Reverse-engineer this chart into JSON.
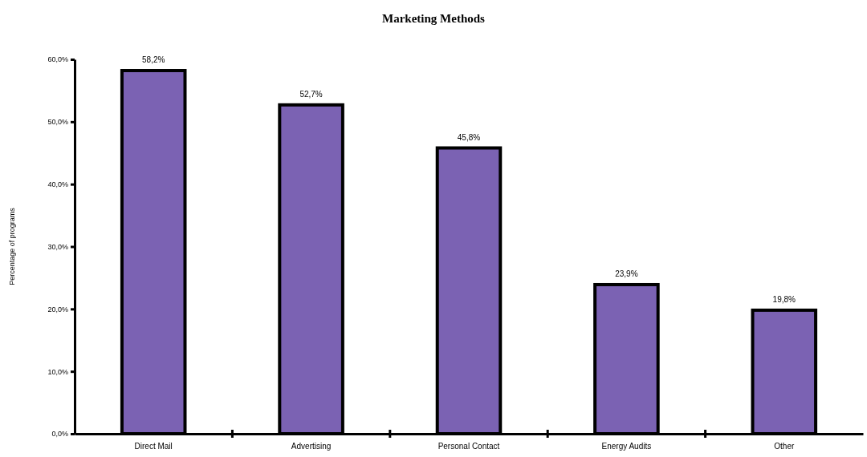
{
  "chart_data": {
    "type": "bar",
    "title": "Marketing Methods",
    "ylabel": "Percentage of programs",
    "categories": [
      "Direct Mail",
      "Advertising",
      "Personal Contact",
      "Energy Audits",
      "Other"
    ],
    "values": [
      58.2,
      52.7,
      45.8,
      23.9,
      19.8
    ],
    "value_labels": [
      "58,2%",
      "52,7%",
      "45,8%",
      "23,9%",
      "19,8%"
    ],
    "color": "#7b62b3",
    "ylim": [
      0,
      60
    ],
    "yticks": [
      {
        "value": 0,
        "label": "0,0%"
      },
      {
        "value": 10,
        "label": "10,0%"
      },
      {
        "value": 20,
        "label": "20,0%"
      },
      {
        "value": 30,
        "label": "30,0%"
      },
      {
        "value": 40,
        "label": "40,0%"
      },
      {
        "value": 50,
        "label": "50,0%"
      },
      {
        "value": 60,
        "label": "60,0%"
      }
    ],
    "grid": false
  }
}
